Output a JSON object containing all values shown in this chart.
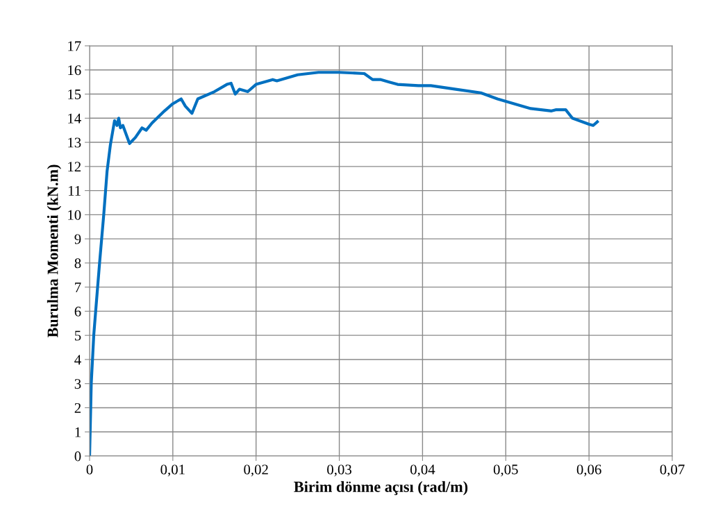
{
  "chart_data": {
    "type": "line",
    "xlabel": "Birim dönme açısı (rad/m)",
    "ylabel": "Burulma Momenti (kN.m)",
    "series": [
      {
        "color": "#0070c0",
        "x": [
          0,
          0.0002,
          0.0005,
          0.0008,
          0.0012,
          0.0017,
          0.0021,
          0.0025,
          0.003,
          0.0033,
          0.0035,
          0.0037,
          0.004,
          0.0048,
          0.0055,
          0.0063,
          0.0068,
          0.0075,
          0.009,
          0.01,
          0.011,
          0.0115,
          0.0123,
          0.013,
          0.015,
          0.0165,
          0.017,
          0.0175,
          0.018,
          0.019,
          0.02,
          0.022,
          0.0225,
          0.025,
          0.0275,
          0.03,
          0.033,
          0.034,
          0.035,
          0.036,
          0.037,
          0.0395,
          0.041,
          0.044,
          0.047,
          0.049,
          0.051,
          0.053,
          0.0555,
          0.056,
          0.0572,
          0.058,
          0.06,
          0.0605,
          0.061
        ],
        "values": [
          0,
          3,
          5,
          6.3,
          8,
          10,
          11.8,
          12.9,
          13.9,
          13.7,
          14,
          13.6,
          13.7,
          12.95,
          13.2,
          13.6,
          13.5,
          13.8,
          14.3,
          14.6,
          14.8,
          14.5,
          14.2,
          14.8,
          15.1,
          15.4,
          15.45,
          15.0,
          15.2,
          15.1,
          15.4,
          15.6,
          15.55,
          15.8,
          15.9,
          15.9,
          15.85,
          15.6,
          15.6,
          15.5,
          15.4,
          15.35,
          15.35,
          15.2,
          15.05,
          14.8,
          14.6,
          14.4,
          14.3,
          14.35,
          14.35,
          14.0,
          13.75,
          13.7,
          13.85
        ]
      }
    ],
    "xlim": [
      0,
      0.07
    ],
    "xticks": [
      0,
      {
        "value": 0.01,
        "label": "0,01"
      },
      {
        "value": 0.02,
        "label": "0,02"
      },
      {
        "value": 0.03,
        "label": "0,03"
      },
      {
        "value": 0.04,
        "label": "0,04"
      },
      {
        "value": 0.05,
        "label": "0,05"
      },
      {
        "value": 0.06,
        "label": "0,06"
      },
      {
        "value": 0.07,
        "label": "0,07"
      }
    ],
    "ylim": [
      0,
      17
    ],
    "yticks": [
      0,
      1,
      2,
      3,
      4,
      5,
      6,
      7,
      8,
      9,
      10,
      11,
      12,
      13,
      14,
      15,
      16,
      17
    ],
    "grid": true,
    "marker": "none",
    "line_style": "solid"
  }
}
